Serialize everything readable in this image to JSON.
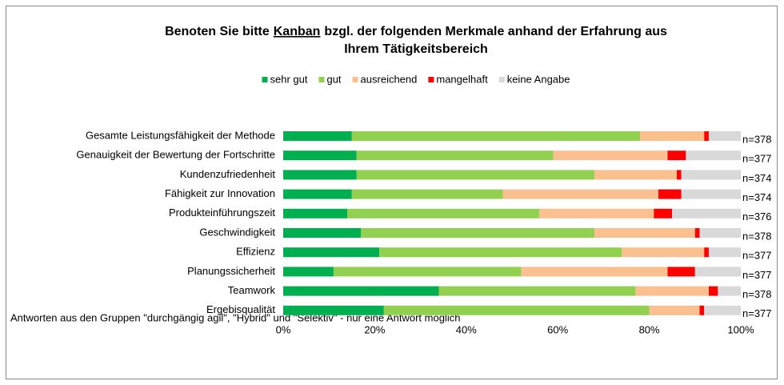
{
  "chart_data": {
    "type": "stacked_bar_horizontal",
    "title": [
      "Benoten Sie bitte",
      "Kanban",
      "bzgl. der folgenden Merkmale anhand der Erfahrung aus",
      "Ihrem Tätigkeitsbereich"
    ],
    "categories": [
      "Gesamte Leistungsfähigkeit der Methode",
      "Genauigkeit der Bewertung der Fortschritte",
      "Kundenzufriedenheit",
      "Fähigkeit zur Innovation",
      "Produkteinführungszeit",
      "Geschwindigkeit",
      "Effizienz",
      "Planungssicherheit",
      "Teamwork",
      "Ergebisqualität"
    ],
    "series": [
      {
        "name": "sehr gut",
        "color": "#00b050",
        "values": [
          15,
          16,
          16,
          15,
          14,
          17,
          21,
          11,
          34,
          22
        ]
      },
      {
        "name": "gut",
        "color": "#92d050",
        "values": [
          63,
          43,
          52,
          33,
          42,
          51,
          53,
          41,
          43,
          58
        ]
      },
      {
        "name": "ausreichend",
        "color": "#fac090",
        "values": [
          14,
          25,
          18,
          34,
          25,
          22,
          18,
          32,
          16,
          11
        ]
      },
      {
        "name": "mangelhaft",
        "color": "#ff0000",
        "values": [
          1,
          4,
          1,
          5,
          4,
          1,
          1,
          6,
          2,
          1
        ]
      },
      {
        "name": "keine Angabe",
        "color": "#d9d9d9",
        "values": [
          7,
          12,
          13,
          13,
          15,
          9,
          7,
          10,
          5,
          8
        ]
      }
    ],
    "annotations": [
      "n=378",
      "n=377",
      "n=374",
      "n=374",
      "n=376",
      "n=378",
      "n=377",
      "n=377",
      "n=378",
      "n=377"
    ],
    "xlim": [
      0,
      100
    ],
    "xticks": [
      {
        "value": 0,
        "label": "0%"
      },
      {
        "value": 20,
        "label": "20%"
      },
      {
        "value": 40,
        "label": "40%"
      },
      {
        "value": 60,
        "label": "60%"
      },
      {
        "value": 80,
        "label": "80%"
      },
      {
        "value": 100,
        "label": "100%"
      }
    ],
    "legend": "top",
    "footnote": "Antworten aus den Gruppen \"durchgängig agil\", \"Hybrid\" und \"Selektiv\" - nur eine Antwort möglich"
  }
}
